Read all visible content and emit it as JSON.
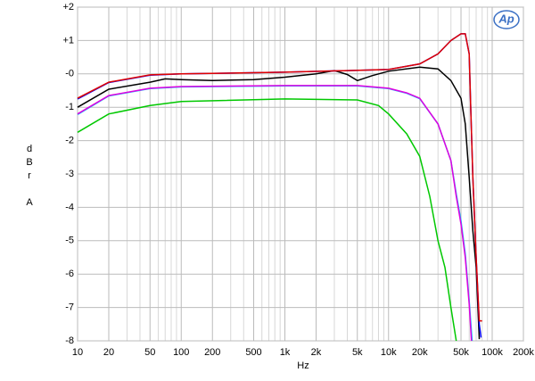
{
  "chart_data": {
    "type": "line",
    "logo": "Ap",
    "xlabel": "Hz",
    "ylabel": [
      "d",
      "B",
      "r",
      "A"
    ],
    "xlog": true,
    "grid": true,
    "xlim": [
      10,
      200000
    ],
    "ylim": [
      -8,
      2
    ],
    "xticks": [
      10,
      20,
      50,
      100,
      200,
      500,
      {
        "value": 1000,
        "label": "1k"
      },
      {
        "value": 2000,
        "label": "2k"
      },
      {
        "value": 5000,
        "label": "5k"
      },
      {
        "value": 10000,
        "label": "10k"
      },
      {
        "value": 20000,
        "label": "20k"
      },
      {
        "value": 50000,
        "label": "50k"
      },
      {
        "value": 100000,
        "label": "100k"
      },
      {
        "value": 200000,
        "label": "200k"
      }
    ],
    "xminorticks": [
      30,
      40,
      60,
      70,
      80,
      90,
      300,
      400,
      600,
      700,
      800,
      900,
      3000,
      4000,
      6000,
      7000,
      8000,
      9000,
      30000,
      40000,
      60000,
      70000,
      80000,
      90000
    ],
    "yticks": [
      {
        "value": 2,
        "label": "+2"
      },
      {
        "value": 1,
        "label": "+1"
      },
      {
        "value": 0,
        "label": "-0"
      },
      -1,
      -2,
      -3,
      -4,
      -5,
      -6,
      -7,
      -8
    ],
    "series": [
      {
        "color": "#00c800",
        "x": [
          10,
          20,
          50,
          100,
          1000,
          5000,
          8000,
          10000,
          15000,
          20000,
          25000,
          30000,
          35000,
          40000,
          45000
        ],
        "values": [
          -1.75,
          -1.2,
          -0.95,
          -0.83,
          -0.75,
          -0.78,
          -0.95,
          -1.2,
          -1.8,
          -2.47,
          -3.67,
          -5.0,
          -5.8,
          -7.0,
          -8.0
        ]
      },
      {
        "color": "#00c8ff",
        "x": [
          10,
          20,
          50,
          100,
          1000,
          2000,
          5000,
          10000,
          15000,
          20000,
          30000,
          40000,
          45000,
          50000,
          55000,
          60000,
          64000
        ],
        "values": [
          -1.22,
          -0.66,
          -0.44,
          -0.39,
          -0.36,
          -0.36,
          -0.36,
          -0.44,
          -0.58,
          -0.74,
          -1.5,
          -2.6,
          -3.6,
          -4.4,
          -5.4,
          -6.8,
          -8.0
        ]
      },
      {
        "color": "#e000e0",
        "x": [
          10,
          20,
          50,
          100,
          1000,
          2000,
          5000,
          10000,
          15000,
          20000,
          30000,
          40000,
          45000,
          50000,
          55000,
          60000,
          63000
        ],
        "values": [
          -1.2,
          -0.65,
          -0.43,
          -0.38,
          -0.35,
          -0.35,
          -0.35,
          -0.43,
          -0.57,
          -0.73,
          -1.5,
          -2.6,
          -3.67,
          -4.5,
          -5.5,
          -6.9,
          -8.0
        ]
      },
      {
        "color": "#000000",
        "x": [
          10,
          20,
          50,
          70,
          100,
          200,
          500,
          1000,
          2000,
          3000,
          4000,
          5000,
          7000,
          10000,
          20000,
          30000,
          40000,
          50000,
          55000,
          60000,
          65000,
          70000,
          75000
        ],
        "values": [
          -1.0,
          -0.46,
          -0.25,
          -0.15,
          -0.17,
          -0.2,
          -0.17,
          -0.1,
          0.0,
          0.1,
          -0.02,
          -0.2,
          -0.05,
          0.08,
          0.2,
          0.15,
          -0.2,
          -0.73,
          -1.5,
          -3.1,
          -4.7,
          -5.8,
          -7.95
        ]
      },
      {
        "color": "#0000ff",
        "x": [
          10,
          20,
          50,
          100,
          1000,
          10000,
          20000,
          30000,
          40000,
          50000,
          55000,
          60000,
          62000,
          65000,
          70000,
          75000,
          78000
        ],
        "values": [
          -0.75,
          -0.26,
          -0.04,
          0.0,
          0.05,
          0.13,
          0.3,
          0.6,
          1.0,
          1.2,
          1.2,
          0.6,
          -1.0,
          -3.1,
          -5.5,
          -7.5,
          -7.9
        ]
      },
      {
        "color": "#e00000",
        "x": [
          10,
          20,
          50,
          100,
          1000,
          10000,
          20000,
          30000,
          40000,
          50000,
          55000,
          60000,
          62000,
          65000,
          70000,
          75000,
          80000
        ],
        "values": [
          -0.73,
          -0.25,
          -0.03,
          0.0,
          0.05,
          0.13,
          0.3,
          0.6,
          1.0,
          1.2,
          1.2,
          0.6,
          -1.0,
          -3.1,
          -5.5,
          -7.4,
          -7.4
        ]
      }
    ]
  }
}
